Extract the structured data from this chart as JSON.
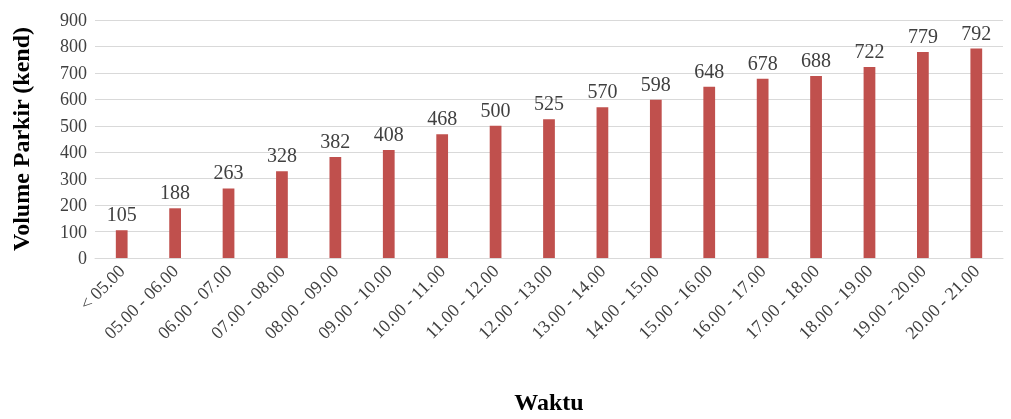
{
  "chart_data": {
    "type": "bar",
    "xlabel": "Waktu",
    "ylabel": "Volume Parkir (kend)",
    "categories": [
      "< 05.00",
      "05.00 - 06.00",
      "06.00 - 07.00",
      "07.00 - 08.00",
      "08.00 - 09.00",
      "09.00 - 10.00",
      "10.00 - 11.00",
      "11.00 - 12.00",
      "12.00 - 13.00",
      "13.00 - 14.00",
      "14.00 - 15.00",
      "15.00 - 16.00",
      "16.00 - 17.00",
      "17.00 - 18.00",
      "18.00 - 19.00",
      "19.00 - 20.00",
      "20.00 - 21.00"
    ],
    "values": [
      105,
      188,
      263,
      328,
      382,
      408,
      468,
      500,
      525,
      570,
      598,
      648,
      678,
      688,
      722,
      779,
      792
    ],
    "color": "#c0504d",
    "ylim": [
      0,
      900
    ],
    "yticks": [
      0,
      100,
      200,
      300,
      400,
      500,
      600,
      700,
      800,
      900
    ],
    "grid": "y",
    "data_labels": true
  }
}
